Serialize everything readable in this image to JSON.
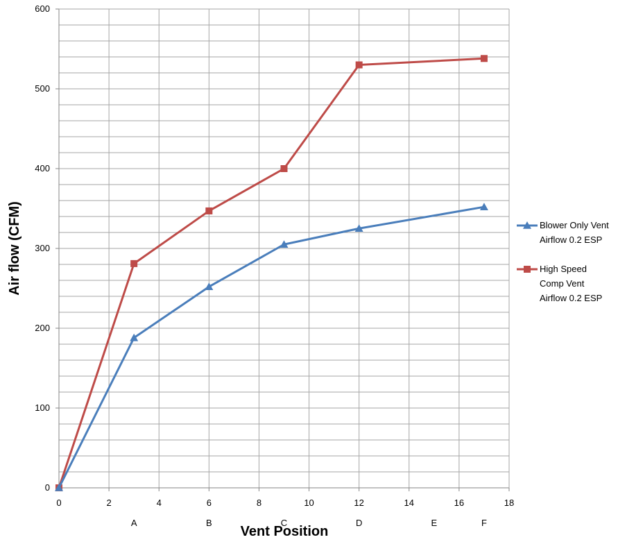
{
  "chart_data": {
    "type": "line",
    "title": "",
    "xlabel": "Vent Position",
    "ylabel": "Air flow (CFM)",
    "xlim": [
      0,
      18
    ],
    "ylim": [
      0,
      600
    ],
    "x_ticks": [
      0,
      2,
      4,
      6,
      8,
      10,
      12,
      14,
      16,
      18
    ],
    "y_ticks": [
      0,
      100,
      200,
      300,
      400,
      500,
      600
    ],
    "position_labels": [
      {
        "x": 3,
        "label": "A"
      },
      {
        "x": 6,
        "label": "B"
      },
      {
        "x": 9,
        "label": "C"
      },
      {
        "x": 12,
        "label": "D"
      },
      {
        "x": 15,
        "label": "E"
      },
      {
        "x": 17,
        "label": "F"
      }
    ],
    "grid": true,
    "legend_position": "right",
    "series": [
      {
        "name": "Blower Only Vent Airflow 0.2 ESP",
        "legend_lines": [
          "Blower Only Vent",
          "Airflow 0.2 ESP"
        ],
        "color": "#4a7ebb",
        "marker": "triangle",
        "x": [
          0,
          3,
          6,
          9,
          12,
          17
        ],
        "values": [
          0,
          188,
          252,
          305,
          325,
          352
        ]
      },
      {
        "name": "High Speed Comp Vent Airflow 0.2 ESP",
        "legend_lines": [
          "High Speed",
          "Comp Vent",
          "Airflow 0.2 ESP"
        ],
        "color": "#be4b48",
        "marker": "square",
        "x": [
          0,
          3,
          6,
          9,
          12,
          17
        ],
        "values": [
          0,
          281,
          347,
          400,
          530,
          538
        ]
      }
    ]
  }
}
